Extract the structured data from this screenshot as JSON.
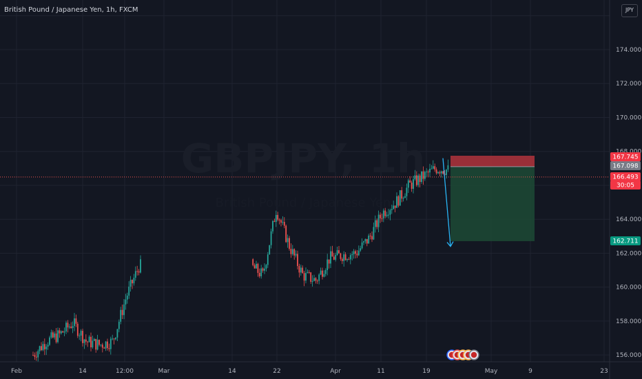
{
  "header": {
    "symbol_title": "British Pound / Japanese Yen, 1h, FXCM",
    "currency_label": "JPY"
  },
  "watermark": {
    "symbol": "GBPJPY, 1h",
    "description": "British Pound / Japanese Yen"
  },
  "colors": {
    "background": "#131722",
    "grid": "#1f2330",
    "up": "#26a69a",
    "down": "#ef5350",
    "projection": "#29b6f6",
    "stop_zone": "#a8323b",
    "target_zone": "#1d4a35",
    "price_line": "#ef5350"
  },
  "chart_data": {
    "type": "candlestick",
    "symbol": "GBPJPY",
    "timeframe": "1h",
    "y_axis": {
      "ticks": [
        156,
        158,
        160,
        162,
        164,
        168,
        170,
        172,
        174
      ],
      "tick_labels": [
        "156.000",
        "158.000",
        "160.000",
        "162.000",
        "164.000",
        "168.000",
        "170.000",
        "172.000",
        "174.000"
      ],
      "range": [
        155.6,
        176.6
      ]
    },
    "x_axis": {
      "tick_labels": [
        "Feb",
        "14",
        "12:00",
        "Mar",
        "14",
        "22",
        "Apr",
        "11",
        "19",
        "May",
        "9",
        "23"
      ]
    },
    "price_path": [
      [
        156.0,
        156.7
      ],
      [
        156.8,
        155.6
      ],
      [
        157.2,
        156.6
      ],
      [
        157.9,
        156.6
      ],
      [
        156.8,
        156.4
      ],
      [
        156.6,
        155.6
      ],
      [
        156.8,
        158.0
      ],
      [
        159.4,
        158.6
      ],
      [
        161.3,
        160.4
      ],
      [
        160.7,
        161.8
      ],
      [
        164.6,
        162.5
      ],
      [
        162.4,
        159.6
      ],
      [
        160.7,
        160.3
      ],
      [
        160.4,
        162.0
      ],
      [
        161.7,
        162.7
      ],
      [
        161.9,
        162.4
      ],
      [
        162.0,
        163.9
      ],
      [
        162.9,
        163.5
      ],
      [
        164.4,
        164.6
      ],
      [
        165.0,
        165.1
      ],
      [
        166.0,
        167.4
      ],
      [
        166.5,
        168.1
      ],
      [
        167.0,
        167.2
      ],
      [
        166.9,
        166.5
      ]
    ],
    "position": {
      "direction": "short",
      "stop_loss": 167.745,
      "entry": 167.098,
      "target": 162.711
    },
    "projection_end": 162.4,
    "price_tags": [
      {
        "value": "167.745",
        "bg": "#f23645"
      },
      {
        "value": "167.098",
        "bg": "#787b86"
      },
      {
        "value": "166.493",
        "bg": "#f23645"
      },
      {
        "value": "30:05",
        "bg": "#f23645"
      },
      {
        "value": "162.711",
        "bg": "#089981"
      }
    ],
    "current_price": 166.493,
    "countdown": "30:05"
  }
}
